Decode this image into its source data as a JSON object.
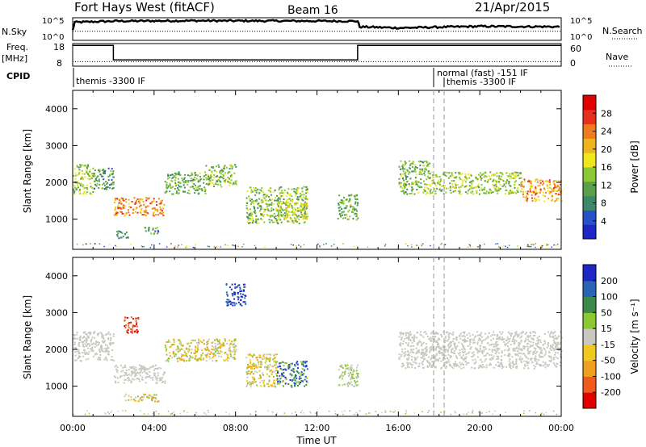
{
  "header": {
    "title": "Fort Hays West (fitACF)",
    "beam": "Beam 16",
    "date": "21/Apr/2015"
  },
  "top_panels": {
    "nsky_label": "N.Sky",
    "nsky_ticks": [
      "10^5",
      "10^0"
    ],
    "nsearch_label": "N.Search",
    "nsearch_ticks": [
      "10^5",
      "10^0"
    ],
    "freq_label": "Freq.",
    "freq_unit": "[MHz]",
    "freq_ticks": [
      "18",
      "8"
    ],
    "nave_label": "Nave",
    "nave_ticks": [
      "60",
      "0"
    ],
    "cpid_label": "CPID",
    "cpid_modes": [
      {
        "text": "themis -3300 IF",
        "start_hour": 0.0
      },
      {
        "text": "normal (fast) -151 IF",
        "start_hour": 17.7
      },
      {
        "text": "themis -3300 IF",
        "start_hour": 18.2
      }
    ]
  },
  "chart_data": [
    {
      "type": "line",
      "name": "nsky-nsearch",
      "x_range_hours": [
        0,
        24
      ],
      "series": [
        {
          "name": "N.Sky",
          "style": "solid",
          "x": [
            0,
            0.1,
            2,
            6,
            10,
            14,
            14.1,
            16,
            20,
            24
          ],
          "level": [
            0.45,
            0.8,
            0.85,
            0.87,
            0.86,
            0.85,
            0.6,
            0.55,
            0.62,
            0.6
          ]
        },
        {
          "name": "N.Search",
          "style": "dotted",
          "x": [
            0,
            24
          ],
          "level": [
            0.4,
            0.4
          ]
        }
      ]
    },
    {
      "type": "line",
      "name": "freq-nave",
      "x_range_hours": [
        0,
        24
      ],
      "series": [
        {
          "name": "Freq.",
          "style": "solid",
          "x": [
            0,
            2,
            2,
            14,
            14,
            24
          ],
          "y": [
            17.2,
            17.2,
            10.8,
            10.8,
            17.2,
            17.2
          ]
        },
        {
          "name": "Nave",
          "style": "dotted",
          "x": [
            0,
            24
          ],
          "y": [
            10,
            10
          ]
        }
      ]
    },
    {
      "type": "heatmap",
      "name": "power",
      "xlabel": "",
      "ylabel": "Slant Range [km]",
      "xlim": [
        0,
        24
      ],
      "ylim": [
        180,
        4500
      ],
      "yticks": [
        1000,
        2000,
        3000,
        4000
      ],
      "colorbar": {
        "label": "Power [dB]",
        "ticks": [
          "4",
          "8",
          "12",
          "16",
          "20",
          "24",
          "28"
        ],
        "colors": [
          "#1e26c8",
          "#2850c8",
          "#3a8a6a",
          "#5aa04a",
          "#8cc832",
          "#f0e61e",
          "#f0b41e",
          "#f07a1e",
          "#e8301e",
          "#e00000"
        ]
      },
      "regions": [
        {
          "x": [
            0.0,
            1.0
          ],
          "y": [
            1700,
            2500
          ],
          "level": 0.45
        },
        {
          "x": [
            1.0,
            2.0
          ],
          "y": [
            1800,
            2400
          ],
          "level": 0.3
        },
        {
          "x": [
            2.0,
            4.5
          ],
          "y": [
            1100,
            1600
          ],
          "level": 0.75
        },
        {
          "x": [
            4.5,
            6.5
          ],
          "y": [
            1700,
            2300
          ],
          "level": 0.35
        },
        {
          "x": [
            6.5,
            8.0
          ],
          "y": [
            1900,
            2500
          ],
          "level": 0.4
        },
        {
          "x": [
            8.5,
            11.5
          ],
          "y": [
            900,
            1900
          ],
          "level": 0.4
        },
        {
          "x": [
            10.0,
            11.5
          ],
          "y": [
            1000,
            1500
          ],
          "level": 0.55
        },
        {
          "x": [
            13.0,
            14.0
          ],
          "y": [
            1000,
            1700
          ],
          "level": 0.35
        },
        {
          "x": [
            16.0,
            17.5
          ],
          "y": [
            1700,
            2600
          ],
          "level": 0.4
        },
        {
          "x": [
            17.5,
            22.0
          ],
          "y": [
            1700,
            2300
          ],
          "level": 0.45
        },
        {
          "x": [
            22.0,
            24.0
          ],
          "y": [
            1500,
            2100
          ],
          "level": 0.7
        },
        {
          "x": [
            2.0,
            2.7
          ],
          "y": [
            500,
            700
          ],
          "level": 0.25
        },
        {
          "x": [
            3.5,
            4.2
          ],
          "y": [
            600,
            800
          ],
          "level": 0.3
        }
      ]
    },
    {
      "type": "heatmap",
      "name": "velocity",
      "xlabel": "Time UT",
      "ylabel": "Slant Range [km]",
      "xlim": [
        0,
        24
      ],
      "ylim": [
        180,
        4500
      ],
      "xticks": [
        "00:00",
        "04:00",
        "08:00",
        "12:00",
        "16:00",
        "20:00",
        "00:00"
      ],
      "yticks": [
        1000,
        2000,
        3000,
        4000
      ],
      "colorbar": {
        "label": "Velocity [m s⁻¹]",
        "ticks": [
          "-200",
          "-100",
          "-50",
          "-15",
          "15",
          "50",
          "100",
          "200"
        ],
        "colors": [
          "#e00000",
          "#f05a1e",
          "#f0a01e",
          "#f0c81e",
          "#c8c8c0",
          "#8cc832",
          "#3a8a4a",
          "#2a64b4",
          "#1e26c8"
        ]
      },
      "regions": [
        {
          "x": [
            0.0,
            2.0
          ],
          "y": [
            1700,
            2500
          ],
          "level": "gray"
        },
        {
          "x": [
            2.0,
            4.5
          ],
          "y": [
            1100,
            1600
          ],
          "level": "gray"
        },
        {
          "x": [
            4.5,
            8.0
          ],
          "y": [
            1700,
            2300
          ],
          "level": "orange"
        },
        {
          "x": [
            8.5,
            10.0
          ],
          "y": [
            1000,
            1900
          ],
          "level": "orange"
        },
        {
          "x": [
            10.0,
            11.5
          ],
          "y": [
            1000,
            1700
          ],
          "level": "green-blue"
        },
        {
          "x": [
            13.0,
            14.0
          ],
          "y": [
            1000,
            1600
          ],
          "level": "green"
        },
        {
          "x": [
            16.0,
            24.0
          ],
          "y": [
            1500,
            2500
          ],
          "level": "gray"
        },
        {
          "x": [
            7.5,
            8.5
          ],
          "y": [
            3200,
            3800
          ],
          "level": "blue"
        },
        {
          "x": [
            2.5,
            3.2
          ],
          "y": [
            2400,
            2900
          ],
          "level": "red"
        },
        {
          "x": [
            2.5,
            4.2
          ],
          "y": [
            600,
            800
          ],
          "level": "orange"
        }
      ]
    }
  ]
}
